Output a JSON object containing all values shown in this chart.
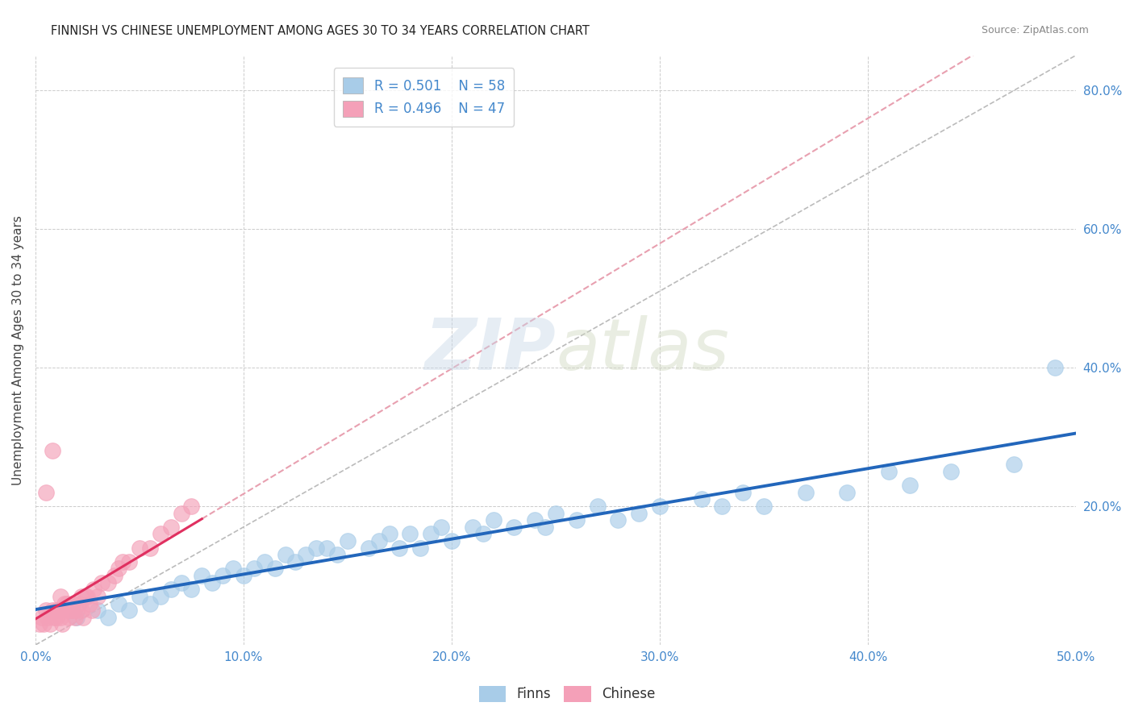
{
  "title": "FINNISH VS CHINESE UNEMPLOYMENT AMONG AGES 30 TO 34 YEARS CORRELATION CHART",
  "source": "Source: ZipAtlas.com",
  "ylabel": "Unemployment Among Ages 30 to 34 years",
  "xlim": [
    0.0,
    0.5
  ],
  "ylim": [
    0.0,
    0.85
  ],
  "xticks": [
    0.0,
    0.1,
    0.2,
    0.3,
    0.4,
    0.5
  ],
  "yticks": [
    0.0,
    0.2,
    0.4,
    0.6,
    0.8
  ],
  "ytick_labels": [
    "",
    "20.0%",
    "40.0%",
    "60.0%",
    "80.0%"
  ],
  "xtick_labels": [
    "0.0%",
    "10.0%",
    "20.0%",
    "30.0%",
    "40.0%",
    "50.0%"
  ],
  "finn_color": "#a8cce8",
  "chinese_color": "#f4a0b8",
  "finn_line_color": "#2266bb",
  "chinese_line_color": "#e03060",
  "chinese_dash_color": "#e8a0b0",
  "diagonal_color": "#bbbbbb",
  "watermark": "ZIPatlas",
  "finn_x": [
    0.02,
    0.03,
    0.035,
    0.04,
    0.045,
    0.05,
    0.055,
    0.06,
    0.065,
    0.07,
    0.075,
    0.08,
    0.085,
    0.09,
    0.095,
    0.1,
    0.105,
    0.11,
    0.115,
    0.12,
    0.125,
    0.13,
    0.135,
    0.14,
    0.145,
    0.15,
    0.16,
    0.165,
    0.17,
    0.175,
    0.18,
    0.185,
    0.19,
    0.195,
    0.2,
    0.21,
    0.215,
    0.22,
    0.23,
    0.24,
    0.245,
    0.25,
    0.26,
    0.27,
    0.28,
    0.29,
    0.3,
    0.32,
    0.33,
    0.34,
    0.35,
    0.37,
    0.39,
    0.41,
    0.42,
    0.44,
    0.47,
    0.49
  ],
  "finn_y": [
    0.04,
    0.05,
    0.04,
    0.06,
    0.05,
    0.07,
    0.06,
    0.07,
    0.08,
    0.09,
    0.08,
    0.1,
    0.09,
    0.1,
    0.11,
    0.1,
    0.11,
    0.12,
    0.11,
    0.13,
    0.12,
    0.13,
    0.14,
    0.14,
    0.13,
    0.15,
    0.14,
    0.15,
    0.16,
    0.14,
    0.16,
    0.14,
    0.16,
    0.17,
    0.15,
    0.17,
    0.16,
    0.18,
    0.17,
    0.18,
    0.17,
    0.19,
    0.18,
    0.2,
    0.18,
    0.19,
    0.2,
    0.21,
    0.2,
    0.22,
    0.2,
    0.22,
    0.22,
    0.25,
    0.23,
    0.25,
    0.26,
    0.4
  ],
  "chinese_x": [
    0.002,
    0.003,
    0.004,
    0.005,
    0.006,
    0.007,
    0.008,
    0.009,
    0.01,
    0.011,
    0.012,
    0.013,
    0.014,
    0.015,
    0.016,
    0.017,
    0.018,
    0.019,
    0.02,
    0.021,
    0.022,
    0.023,
    0.024,
    0.025,
    0.026,
    0.027,
    0.028,
    0.03,
    0.032,
    0.035,
    0.038,
    0.04,
    0.042,
    0.045,
    0.05,
    0.055,
    0.06,
    0.065,
    0.07,
    0.075,
    0.005,
    0.008,
    0.01,
    0.012,
    0.015,
    0.018,
    0.022
  ],
  "chinese_y": [
    0.03,
    0.04,
    0.03,
    0.05,
    0.04,
    0.03,
    0.05,
    0.04,
    0.04,
    0.05,
    0.04,
    0.03,
    0.06,
    0.05,
    0.04,
    0.05,
    0.06,
    0.04,
    0.05,
    0.06,
    0.05,
    0.04,
    0.07,
    0.07,
    0.06,
    0.05,
    0.08,
    0.07,
    0.09,
    0.09,
    0.1,
    0.11,
    0.12,
    0.12,
    0.14,
    0.14,
    0.16,
    0.17,
    0.19,
    0.2,
    0.22,
    0.28,
    0.05,
    0.07,
    0.06,
    0.05,
    0.07
  ],
  "background_color": "#ffffff",
  "grid_color": "#cccccc",
  "title_color": "#222222",
  "axis_label_color": "#444444",
  "tick_color": "#4488cc",
  "legend_text_color": "#4488cc"
}
